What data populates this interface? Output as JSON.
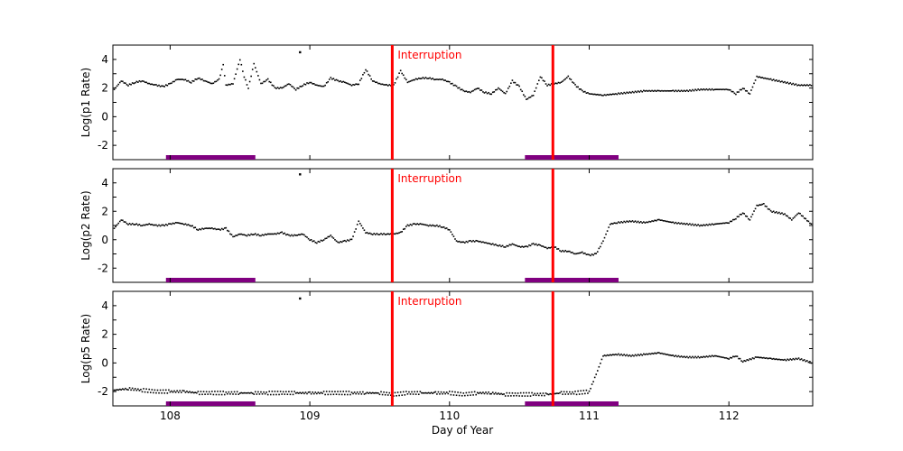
{
  "chart_data": {
    "type": "scatter",
    "title": "",
    "xlabel": "Day of Year",
    "xlim": [
      107.59,
      112.6
    ],
    "x_ticks": [
      108,
      109,
      110,
      111,
      112
    ],
    "x_tick_labels": [
      "108",
      "109",
      "110",
      "111",
      "112"
    ],
    "shared_x": true,
    "grid": false,
    "interruption_lines": [
      109.59,
      110.74
    ],
    "interruption_color": "#ff0000",
    "interruption_label": "Interruption",
    "shaded_bars": [
      [
        107.97,
        108.61
      ],
      [
        110.54,
        111.21
      ]
    ],
    "shaded_bar_color": "#800080",
    "panels": [
      {
        "ylabel": "Log(p1 Rate)",
        "ylim": [
          -3,
          5
        ],
        "y_ticks": [
          -2,
          0,
          2,
          4
        ],
        "y_tick_labels": [
          "-2",
          "0",
          "2",
          "4"
        ],
        "series": {
          "name": "p1",
          "x": [
            107.6,
            107.65,
            107.7,
            107.75,
            107.8,
            107.85,
            107.9,
            107.95,
            108.0,
            108.05,
            108.1,
            108.15,
            108.2,
            108.25,
            108.3,
            108.35,
            108.38,
            108.4,
            108.45,
            108.5,
            108.53,
            108.56,
            108.6,
            108.65,
            108.7,
            108.75,
            108.8,
            108.85,
            108.9,
            108.95,
            109.0,
            109.05,
            109.1,
            109.15,
            109.2,
            109.25,
            109.3,
            109.35,
            109.4,
            109.45,
            109.5,
            109.55,
            109.6,
            109.65,
            109.7,
            109.75,
            109.8,
            109.85,
            109.9,
            109.95,
            110.0,
            110.05,
            110.1,
            110.15,
            110.2,
            110.25,
            110.3,
            110.35,
            110.4,
            110.45,
            110.5,
            110.55,
            110.6,
            110.65,
            110.7,
            110.75,
            110.8,
            110.85,
            110.9,
            110.95,
            111.0,
            111.1,
            111.2,
            111.3,
            111.4,
            111.5,
            111.6,
            111.7,
            111.8,
            111.9,
            112.0,
            112.05,
            112.1,
            112.15,
            112.2,
            112.3,
            112.4,
            112.5,
            112.6
          ],
          "y": [
            1.9,
            2.5,
            2.2,
            2.4,
            2.5,
            2.3,
            2.2,
            2.1,
            2.3,
            2.6,
            2.6,
            2.4,
            2.7,
            2.5,
            2.3,
            2.6,
            3.6,
            2.2,
            2.3,
            4.0,
            2.8,
            2.0,
            3.7,
            2.3,
            2.6,
            2.0,
            2.0,
            2.3,
            1.9,
            2.2,
            2.4,
            2.2,
            2.1,
            2.7,
            2.5,
            2.4,
            2.2,
            2.3,
            3.3,
            2.5,
            2.3,
            2.2,
            2.2,
            3.2,
            2.4,
            2.6,
            2.7,
            2.7,
            2.6,
            2.6,
            2.4,
            2.1,
            1.8,
            1.7,
            2.0,
            1.7,
            1.6,
            2.0,
            1.6,
            2.5,
            2.1,
            1.2,
            1.5,
            2.8,
            2.2,
            2.3,
            2.4,
            2.8,
            2.2,
            1.8,
            1.6,
            1.5,
            1.6,
            1.7,
            1.8,
            1.8,
            1.8,
            1.8,
            1.9,
            1.9,
            1.9,
            1.6,
            2.0,
            1.6,
            2.8,
            2.6,
            2.4,
            2.2,
            2.2
          ]
        }
      },
      {
        "ylabel": "Log(p2 Rate)",
        "ylim": [
          -3,
          5
        ],
        "y_ticks": [
          -2,
          0,
          2,
          4
        ],
        "y_tick_labels": [
          "-2",
          "0",
          "2",
          "4"
        ],
        "series": {
          "name": "p2",
          "x": [
            107.6,
            107.65,
            107.7,
            107.75,
            107.8,
            107.85,
            107.9,
            107.95,
            108.0,
            108.05,
            108.1,
            108.15,
            108.2,
            108.25,
            108.3,
            108.35,
            108.4,
            108.45,
            108.5,
            108.55,
            108.6,
            108.65,
            108.7,
            108.75,
            108.8,
            108.85,
            108.9,
            108.95,
            109.0,
            109.05,
            109.1,
            109.15,
            109.2,
            109.25,
            109.3,
            109.35,
            109.4,
            109.45,
            109.5,
            109.55,
            109.6,
            109.65,
            109.7,
            109.75,
            109.8,
            109.85,
            109.9,
            109.95,
            110.0,
            110.05,
            110.1,
            110.15,
            110.2,
            110.25,
            110.3,
            110.35,
            110.4,
            110.45,
            110.5,
            110.55,
            110.6,
            110.65,
            110.7,
            110.75,
            110.8,
            110.85,
            110.9,
            110.95,
            111.0,
            111.05,
            111.1,
            111.15,
            111.2,
            111.3,
            111.4,
            111.5,
            111.6,
            111.7,
            111.8,
            111.9,
            112.0,
            112.05,
            112.1,
            112.15,
            112.2,
            112.25,
            112.3,
            112.4,
            112.45,
            112.5,
            112.6
          ],
          "y": [
            0.8,
            1.4,
            1.1,
            1.1,
            1.0,
            1.1,
            1.0,
            1.0,
            1.1,
            1.2,
            1.1,
            1.0,
            0.7,
            0.8,
            0.8,
            0.7,
            0.8,
            0.2,
            0.4,
            0.3,
            0.4,
            0.3,
            0.4,
            0.4,
            0.5,
            0.3,
            0.3,
            0.4,
            0.0,
            -0.2,
            0.0,
            0.3,
            -0.2,
            -0.1,
            0.0,
            1.3,
            0.5,
            0.4,
            0.4,
            0.4,
            0.4,
            0.5,
            1.0,
            1.1,
            1.1,
            1.0,
            1.0,
            0.9,
            0.7,
            -0.1,
            -0.2,
            -0.1,
            -0.1,
            -0.2,
            -0.3,
            -0.4,
            -0.5,
            -0.3,
            -0.5,
            -0.5,
            -0.3,
            -0.4,
            -0.6,
            -0.5,
            -0.8,
            -0.8,
            -1.0,
            -0.9,
            -1.1,
            -1.0,
            -0.1,
            1.1,
            1.2,
            1.3,
            1.2,
            1.4,
            1.2,
            1.1,
            1.0,
            1.1,
            1.2,
            1.5,
            1.9,
            1.4,
            2.4,
            2.5,
            2.0,
            1.8,
            1.4,
            1.9,
            1.0
          ]
        }
      },
      {
        "ylabel": "Log(p5 Rate)",
        "ylim": [
          -3,
          5
        ],
        "y_ticks": [
          -2,
          0,
          2,
          4
        ],
        "y_tick_labels": [
          "-2",
          "0",
          "2",
          "4"
        ],
        "series": {
          "name": "p5",
          "x": [
            107.6,
            107.7,
            107.8,
            107.9,
            108.0,
            108.1,
            108.2,
            108.3,
            108.4,
            108.5,
            108.6,
            108.7,
            108.8,
            108.9,
            109.0,
            109.1,
            109.2,
            109.3,
            109.4,
            109.5,
            109.6,
            109.7,
            109.8,
            109.9,
            110.0,
            110.1,
            110.2,
            110.3,
            110.4,
            110.5,
            110.6,
            110.7,
            110.8,
            110.9,
            111.0,
            111.05,
            111.1,
            111.2,
            111.3,
            111.4,
            111.5,
            111.6,
            111.7,
            111.8,
            111.9,
            112.0,
            112.05,
            112.1,
            112.2,
            112.3,
            112.4,
            112.5,
            112.6
          ],
          "y": [
            -1.9,
            -1.8,
            -1.9,
            -2.0,
            -2.0,
            -2.0,
            -2.1,
            -2.1,
            -2.1,
            -2.1,
            -2.1,
            -2.1,
            -2.1,
            -2.1,
            -2.1,
            -2.1,
            -2.1,
            -2.1,
            -2.1,
            -2.1,
            -2.2,
            -2.1,
            -2.1,
            -2.1,
            -2.1,
            -2.2,
            -2.1,
            -2.1,
            -2.2,
            -2.2,
            -2.2,
            -2.2,
            -2.1,
            -2.1,
            -2.0,
            -0.8,
            0.5,
            0.6,
            0.5,
            0.6,
            0.7,
            0.5,
            0.4,
            0.4,
            0.5,
            0.3,
            0.5,
            0.1,
            0.4,
            0.3,
            0.2,
            0.3,
            0.0
          ]
        }
      }
    ],
    "outlier_points": [
      {
        "panel": 0,
        "x": 108.93,
        "y": 4.5
      },
      {
        "panel": 1,
        "x": 108.93,
        "y": 4.6
      },
      {
        "panel": 2,
        "x": 108.93,
        "y": 4.5
      }
    ]
  }
}
